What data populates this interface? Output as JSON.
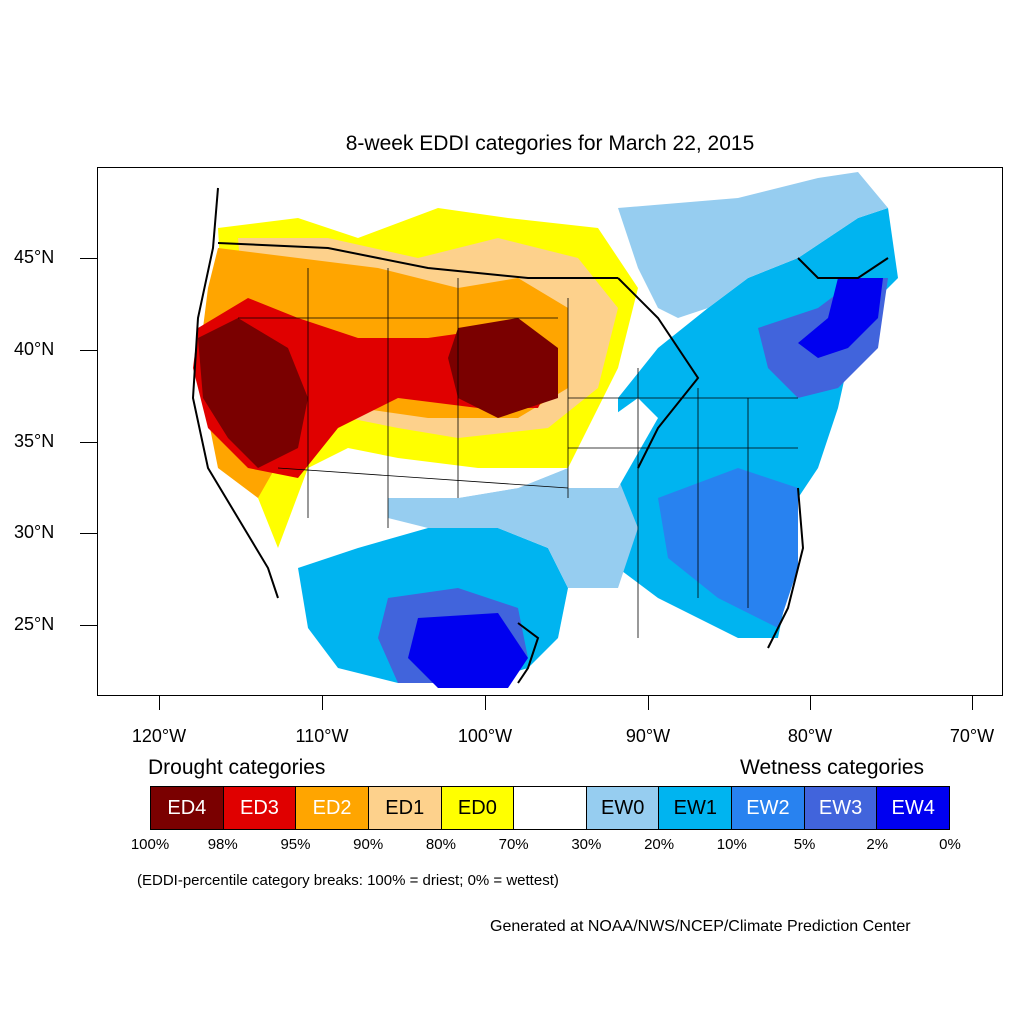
{
  "title": "8-week EDDI categories for March 22, 2015",
  "lat_labels": [
    "45°N",
    "40°N",
    "35°N",
    "30°N",
    "25°N"
  ],
  "lon_labels": [
    "120°W",
    "110°W",
    "100°W",
    "90°W",
    "80°W",
    "70°W"
  ],
  "legend": {
    "drought_heading": "Drought categories",
    "wetness_heading": "Wetness categories",
    "categories": [
      {
        "label": "ED4",
        "color": "#7a0000",
        "text_color": "#ffffff"
      },
      {
        "label": "ED3",
        "color": "#e00000",
        "text_color": "#ffffff"
      },
      {
        "label": "ED2",
        "color": "#ffa500",
        "text_color": "#ffffff"
      },
      {
        "label": "ED1",
        "color": "#fdd18c",
        "text_color": "#000000"
      },
      {
        "label": "ED0",
        "color": "#ffff00",
        "text_color": "#000000"
      },
      {
        "label": "",
        "color": "#ffffff",
        "text_color": "#000000"
      },
      {
        "label": "EW0",
        "color": "#96cdf0",
        "text_color": "#000000"
      },
      {
        "label": "EW1",
        "color": "#00b4f0",
        "text_color": "#000000"
      },
      {
        "label": "EW2",
        "color": "#2882f0",
        "text_color": "#ffffff"
      },
      {
        "label": "EW3",
        "color": "#4164dc",
        "text_color": "#ffffff"
      },
      {
        "label": "EW4",
        "color": "#0000f0",
        "text_color": "#ffffff"
      }
    ],
    "breaks": [
      "100%",
      "98%",
      "95%",
      "90%",
      "80%",
      "70%",
      "30%",
      "20%",
      "10%",
      "5%",
      "2%",
      "0%"
    ]
  },
  "breaks_note": "(EDDI-percentile category breaks: 100% = driest; 0% = wettest)",
  "credit": "Generated at NOAA/NWS/NCEP/Climate Prediction Center"
}
